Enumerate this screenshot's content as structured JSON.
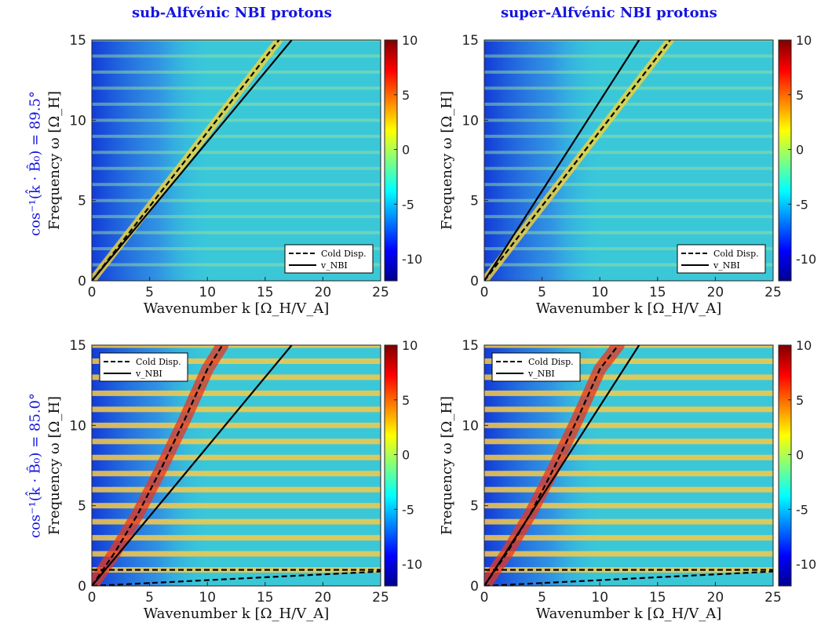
{
  "titles": {
    "left": "sub-Alfvénic NBI protons",
    "right": "super-Alfvénic NBI protons"
  },
  "row_labels": {
    "top": "cos⁻¹(k̂ · B̂₀) = 89.5°",
    "bottom": "cos⁻¹(k̂ · B̂₀) = 85.0°"
  },
  "colors": {
    "title": "#1515e0",
    "dashed_line": "#000000",
    "solid_line": "#000000"
  },
  "colormap": "jet",
  "chart_data": [
    {
      "type": "heatmap",
      "panel": "sub-Alfvénic, 89.5°",
      "xlabel": "Wavenumber k [Ω_H/V_A]",
      "ylabel": "Frequency ω [Ω_H]",
      "xlim": [
        0,
        25
      ],
      "ylim": [
        0,
        15
      ],
      "xticks": [
        0,
        5,
        10,
        15,
        20,
        25
      ],
      "yticks": [
        0,
        5,
        10,
        15
      ],
      "clim": [
        -12,
        10
      ],
      "cticks": [
        10,
        5,
        0,
        -5,
        -10
      ],
      "legend": {
        "position": "bottom-right",
        "entries": [
          "Cold Disp.",
          "v_NBI"
        ]
      },
      "lines": [
        {
          "name": "Cold Disp.",
          "style": "dashed",
          "x": [
            0,
            16.2
          ],
          "y": [
            0,
            15
          ]
        },
        {
          "name": "v_NBI",
          "style": "solid",
          "x": [
            0,
            17.3
          ],
          "y": [
            0,
            15
          ]
        }
      ]
    },
    {
      "type": "heatmap",
      "panel": "super-Alfvénic, 89.5°",
      "xlabel": "Wavenumber k [Ω_H/V_A]",
      "ylabel": "Frequency ω [Ω_H]",
      "xlim": [
        0,
        25
      ],
      "ylim": [
        0,
        15
      ],
      "xticks": [
        0,
        5,
        10,
        15,
        20,
        25
      ],
      "yticks": [
        0,
        5,
        10,
        15
      ],
      "clim": [
        -12,
        10
      ],
      "cticks": [
        10,
        5,
        0,
        -5,
        -10
      ],
      "legend": {
        "position": "bottom-right",
        "entries": [
          "Cold Disp.",
          "v_NBI"
        ]
      },
      "lines": [
        {
          "name": "Cold Disp.",
          "style": "dashed",
          "x": [
            0,
            16.1
          ],
          "y": [
            0,
            15
          ]
        },
        {
          "name": "v_NBI",
          "style": "solid",
          "x": [
            0,
            13.4
          ],
          "y": [
            0,
            15
          ]
        }
      ]
    },
    {
      "type": "heatmap",
      "panel": "sub-Alfvénic, 85.0°",
      "xlabel": "Wavenumber k [Ω_H/V_A]",
      "ylabel": "Frequency ω [Ω_H]",
      "xlim": [
        0,
        25
      ],
      "ylim": [
        0,
        15
      ],
      "xticks": [
        0,
        5,
        10,
        15,
        20,
        25
      ],
      "yticks": [
        0,
        5,
        10,
        15
      ],
      "clim": [
        -12,
        10
      ],
      "cticks": [
        10,
        5,
        0,
        -5,
        -10
      ],
      "legend": {
        "position": "top-left",
        "entries": [
          "Cold Disp.",
          "v_NBI"
        ]
      },
      "lines": [
        {
          "name": "Cold Disp.",
          "style": "dashed",
          "x": [
            0,
            2,
            4,
            6,
            8,
            10,
            11.3
          ],
          "y": [
            0,
            2.1,
            4.5,
            7.3,
            10.3,
            13.5,
            15
          ]
        },
        {
          "name": "v_NBI",
          "style": "solid",
          "x": [
            0,
            17.3
          ],
          "y": [
            0,
            15
          ]
        },
        {
          "name": "Cold Disp.",
          "style": "dashed",
          "x": [
            0,
            25
          ],
          "y": [
            1,
            1
          ]
        },
        {
          "name": "Cold Disp.",
          "style": "dashed",
          "x": [
            0,
            25
          ],
          "y": [
            0,
            0.9
          ]
        }
      ]
    },
    {
      "type": "heatmap",
      "panel": "super-Alfvénic, 85.0°",
      "xlabel": "Wavenumber k [Ω_H/V_A]",
      "ylabel": "Frequency ω [Ω_H]",
      "xlim": [
        0,
        25
      ],
      "ylim": [
        0,
        15
      ],
      "xticks": [
        0,
        5,
        10,
        15,
        20,
        25
      ],
      "yticks": [
        0,
        5,
        10,
        15
      ],
      "clim": [
        -12,
        10
      ],
      "cticks": [
        10,
        5,
        0,
        -5,
        -10
      ],
      "legend": {
        "position": "top-left",
        "entries": [
          "Cold Disp.",
          "v_NBI"
        ]
      },
      "lines": [
        {
          "name": "Cold Disp.",
          "style": "dashed",
          "x": [
            0,
            2,
            4,
            6,
            8,
            10,
            11.6
          ],
          "y": [
            0,
            2.1,
            4.5,
            7.3,
            10.3,
            13.5,
            15
          ]
        },
        {
          "name": "v_NBI",
          "style": "solid",
          "x": [
            0,
            13.4
          ],
          "y": [
            0,
            15
          ]
        },
        {
          "name": "Cold Disp.",
          "style": "dashed",
          "x": [
            0,
            25
          ],
          "y": [
            1,
            1
          ]
        },
        {
          "name": "Cold Disp.",
          "style": "dashed",
          "x": [
            0,
            25
          ],
          "y": [
            0,
            0.9
          ]
        }
      ]
    }
  ]
}
